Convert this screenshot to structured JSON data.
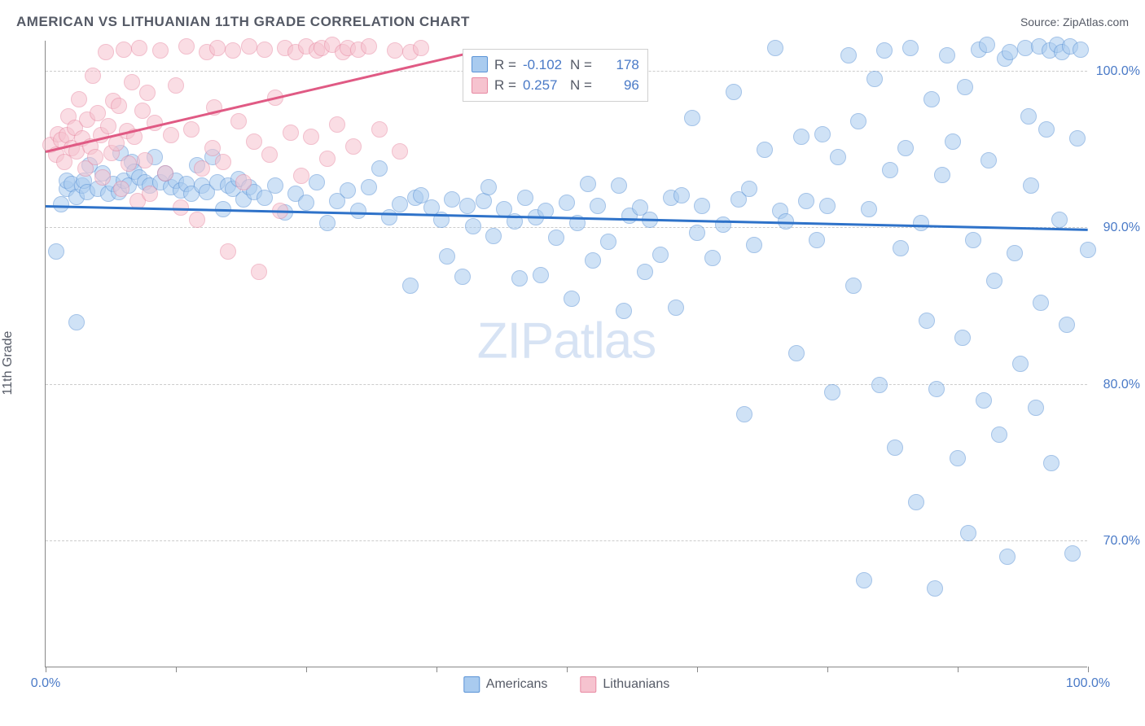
{
  "title": "AMERICAN VS LITHUANIAN 11TH GRADE CORRELATION CHART",
  "source_label": "Source: ZipAtlas.com",
  "ylabel": "11th Grade",
  "watermark_a": "ZIP",
  "watermark_b": "atlas",
  "chart": {
    "type": "scatter",
    "xlim": [
      0,
      100
    ],
    "ylim": [
      62,
      102
    ],
    "x_tick_positions": [
      0,
      12.5,
      25,
      37.5,
      50,
      62.5,
      75,
      87.5,
      100
    ],
    "x_tick_labels": {
      "0": "0.0%",
      "100": "100.0%"
    },
    "y_grid_positions": [
      70,
      80,
      90,
      100
    ],
    "y_tick_labels": [
      "70.0%",
      "80.0%",
      "90.0%",
      "100.0%"
    ],
    "grid_color": "#cccccc",
    "axis_color": "#888888",
    "background_color": "#ffffff",
    "marker_radius": 10,
    "marker_opacity": 0.55,
    "series": [
      {
        "name": "Americans",
        "fill": "#a9cbef",
        "stroke": "#5a93d6",
        "trend_color": "#2e72c9",
        "trend": {
          "x1": 0,
          "y1": 91.3,
          "x2": 100,
          "y2": 89.8
        },
        "R": "-0.102",
        "N": "178",
        "points": [
          [
            1,
            88.5
          ],
          [
            1.5,
            91.5
          ],
          [
            2,
            92.5
          ],
          [
            2,
            93
          ],
          [
            2.5,
            92.8
          ],
          [
            3,
            84
          ],
          [
            3,
            92
          ],
          [
            3.5,
            92.7
          ],
          [
            3.7,
            93
          ],
          [
            4,
            92.3
          ],
          [
            4.2,
            94
          ],
          [
            5,
            92.5
          ],
          [
            5.5,
            93.5
          ],
          [
            6,
            92.2
          ],
          [
            6.5,
            92.8
          ],
          [
            7,
            92.3
          ],
          [
            7.2,
            94.8
          ],
          [
            7.5,
            93
          ],
          [
            8,
            92.7
          ],
          [
            8.3,
            94.2
          ],
          [
            8.5,
            93.6
          ],
          [
            9,
            93.2
          ],
          [
            9.5,
            92.9
          ],
          [
            10,
            92.7
          ],
          [
            10.5,
            94.5
          ],
          [
            11,
            92.9
          ],
          [
            11.5,
            93.5
          ],
          [
            12,
            92.6
          ],
          [
            12.5,
            93
          ],
          [
            13,
            92.4
          ],
          [
            13.5,
            92.8
          ],
          [
            14,
            92.2
          ],
          [
            14.5,
            94
          ],
          [
            15,
            92.7
          ],
          [
            15.5,
            92.3
          ],
          [
            16,
            94.5
          ],
          [
            16.5,
            92.9
          ],
          [
            17,
            91.2
          ],
          [
            17.5,
            92.7
          ],
          [
            18,
            92.5
          ],
          [
            18.5,
            93.1
          ],
          [
            19,
            91.8
          ],
          [
            19.5,
            92.6
          ],
          [
            20,
            92.3
          ],
          [
            21,
            91.9
          ],
          [
            22,
            92.7
          ],
          [
            23,
            91
          ],
          [
            24,
            92.2
          ],
          [
            25,
            91.6
          ],
          [
            26,
            92.9
          ],
          [
            27,
            90.3
          ],
          [
            28,
            91.7
          ],
          [
            29,
            92.4
          ],
          [
            30,
            91.1
          ],
          [
            31,
            92.6
          ],
          [
            32,
            93.8
          ],
          [
            33,
            90.7
          ],
          [
            34,
            91.5
          ],
          [
            35,
            86.3
          ],
          [
            35.5,
            91.9
          ],
          [
            36,
            92.1
          ],
          [
            37,
            91.3
          ],
          [
            38,
            90.5
          ],
          [
            38.5,
            88.2
          ],
          [
            39,
            91.8
          ],
          [
            40,
            86.9
          ],
          [
            40.5,
            91.4
          ],
          [
            41,
            90.1
          ],
          [
            42,
            91.7
          ],
          [
            42.5,
            92.6
          ],
          [
            43,
            89.5
          ],
          [
            44,
            91.2
          ],
          [
            45,
            90.4
          ],
          [
            45.5,
            86.8
          ],
          [
            46,
            91.9
          ],
          [
            47,
            90.7
          ],
          [
            47.5,
            87
          ],
          [
            48,
            91.1
          ],
          [
            49,
            89.4
          ],
          [
            50,
            91.6
          ],
          [
            50.5,
            85.5
          ],
          [
            51,
            90.3
          ],
          [
            52,
            92.8
          ],
          [
            52.5,
            87.9
          ],
          [
            53,
            91.4
          ],
          [
            54,
            89.1
          ],
          [
            55,
            92.7
          ],
          [
            55.5,
            84.7
          ],
          [
            56,
            90.8
          ],
          [
            57,
            91.3
          ],
          [
            57.5,
            87.2
          ],
          [
            58,
            90.5
          ],
          [
            59,
            88.3
          ],
          [
            60,
            91.9
          ],
          [
            60.5,
            84.9
          ],
          [
            61,
            92.1
          ],
          [
            62,
            97
          ],
          [
            62.5,
            89.7
          ],
          [
            63,
            91.4
          ],
          [
            64,
            88.1
          ],
          [
            65,
            90.2
          ],
          [
            66,
            98.7
          ],
          [
            66.5,
            91.8
          ],
          [
            67,
            78.1
          ],
          [
            67.5,
            92.5
          ],
          [
            68,
            88.9
          ],
          [
            69,
            95
          ],
          [
            70,
            101.5
          ],
          [
            70.5,
            91.1
          ],
          [
            71,
            90.4
          ],
          [
            72,
            82
          ],
          [
            72.5,
            95.8
          ],
          [
            73,
            91.7
          ],
          [
            74,
            89.2
          ],
          [
            74.5,
            96
          ],
          [
            75,
            91.4
          ],
          [
            75.5,
            79.5
          ],
          [
            76,
            94.5
          ],
          [
            77,
            101
          ],
          [
            77.5,
            86.3
          ],
          [
            78,
            96.8
          ],
          [
            78.5,
            67.5
          ],
          [
            79,
            91.2
          ],
          [
            79.5,
            99.5
          ],
          [
            80,
            80
          ],
          [
            80.5,
            101.3
          ],
          [
            81,
            93.7
          ],
          [
            81.5,
            76
          ],
          [
            82,
            88.7
          ],
          [
            82.5,
            95.1
          ],
          [
            83,
            101.5
          ],
          [
            83.5,
            72.5
          ],
          [
            84,
            90.3
          ],
          [
            84.5,
            84.1
          ],
          [
            85,
            98.2
          ],
          [
            85.3,
            67
          ],
          [
            85.5,
            79.7
          ],
          [
            86,
            93.4
          ],
          [
            86.5,
            101
          ],
          [
            87,
            95.5
          ],
          [
            87.5,
            75.3
          ],
          [
            88,
            83
          ],
          [
            88.2,
            99
          ],
          [
            88.5,
            70.5
          ],
          [
            89,
            89.2
          ],
          [
            89.5,
            101.4
          ],
          [
            90,
            79
          ],
          [
            90.3,
            101.7
          ],
          [
            90.5,
            94.3
          ],
          [
            91,
            86.6
          ],
          [
            91.5,
            76.8
          ],
          [
            92,
            100.8
          ],
          [
            92.3,
            69
          ],
          [
            92.5,
            101.2
          ],
          [
            93,
            88.4
          ],
          [
            93.5,
            81.3
          ],
          [
            94,
            101.5
          ],
          [
            94.3,
            97.1
          ],
          [
            94.5,
            92.7
          ],
          [
            95,
            78.5
          ],
          [
            95.3,
            101.6
          ],
          [
            95.5,
            85.2
          ],
          [
            96,
            96.3
          ],
          [
            96.3,
            101.3
          ],
          [
            96.5,
            75
          ],
          [
            97,
            101.7
          ],
          [
            97.3,
            90.5
          ],
          [
            97.5,
            101.2
          ],
          [
            98,
            83.8
          ],
          [
            98.3,
            101.6
          ],
          [
            98.5,
            69.2
          ],
          [
            99,
            95.7
          ],
          [
            99.3,
            101.4
          ],
          [
            100,
            88.6
          ]
        ]
      },
      {
        "name": "Lithuanians",
        "fill": "#f6c3cf",
        "stroke": "#e88aa3",
        "trend_color": "#e05a84",
        "trend": {
          "x1": 0,
          "y1": 94.8,
          "x2": 40,
          "y2": 101
        },
        "R": "0.257",
        "N": "96",
        "points": [
          [
            0.5,
            95.3
          ],
          [
            1,
            94.7
          ],
          [
            1.2,
            96
          ],
          [
            1.5,
            95.6
          ],
          [
            1.8,
            94.2
          ],
          [
            2,
            95.9
          ],
          [
            2.2,
            97.1
          ],
          [
            2.5,
            95.1
          ],
          [
            2.8,
            96.4
          ],
          [
            3,
            94.9
          ],
          [
            3.2,
            98.2
          ],
          [
            3.5,
            95.7
          ],
          [
            3.8,
            93.8
          ],
          [
            4,
            96.9
          ],
          [
            4.3,
            95.2
          ],
          [
            4.5,
            99.7
          ],
          [
            4.8,
            94.5
          ],
          [
            5,
            97.3
          ],
          [
            5.3,
            95.9
          ],
          [
            5.5,
            93.2
          ],
          [
            5.8,
            101.2
          ],
          [
            6,
            96.5
          ],
          [
            6.3,
            94.8
          ],
          [
            6.5,
            98.1
          ],
          [
            6.8,
            95.4
          ],
          [
            7,
            97.8
          ],
          [
            7.3,
            92.5
          ],
          [
            7.5,
            101.4
          ],
          [
            7.8,
            96.2
          ],
          [
            8,
            94.1
          ],
          [
            8.3,
            99.3
          ],
          [
            8.5,
            95.8
          ],
          [
            8.8,
            91.7
          ],
          [
            9,
            101.5
          ],
          [
            9.3,
            97.5
          ],
          [
            9.5,
            94.3
          ],
          [
            9.8,
            98.6
          ],
          [
            10,
            92.2
          ],
          [
            10.5,
            96.7
          ],
          [
            11,
            101.3
          ],
          [
            11.5,
            93.5
          ],
          [
            12,
            95.9
          ],
          [
            12.5,
            99.1
          ],
          [
            13,
            91.3
          ],
          [
            13.5,
            101.6
          ],
          [
            14,
            96.3
          ],
          [
            14.5,
            90.5
          ],
          [
            15,
            93.8
          ],
          [
            15.5,
            101.2
          ],
          [
            16,
            95.1
          ],
          [
            16.2,
            97.7
          ],
          [
            16.5,
            101.5
          ],
          [
            17,
            94.2
          ],
          [
            17.5,
            88.5
          ],
          [
            18,
            101.3
          ],
          [
            18.5,
            96.8
          ],
          [
            19,
            92.9
          ],
          [
            19.5,
            101.6
          ],
          [
            20,
            95.5
          ],
          [
            20.5,
            87.2
          ],
          [
            21,
            101.4
          ],
          [
            21.5,
            94.7
          ],
          [
            22,
            98.3
          ],
          [
            22.5,
            91.1
          ],
          [
            23,
            101.5
          ],
          [
            23.5,
            96.1
          ],
          [
            24,
            101.2
          ],
          [
            24.5,
            93.3
          ],
          [
            25,
            101.6
          ],
          [
            25.5,
            95.8
          ],
          [
            26,
            101.3
          ],
          [
            26.5,
            101.5
          ],
          [
            27,
            94.4
          ],
          [
            27.5,
            101.7
          ],
          [
            28,
            96.6
          ],
          [
            28.5,
            101.2
          ],
          [
            29,
            101.5
          ],
          [
            29.5,
            95.2
          ],
          [
            30,
            101.4
          ],
          [
            31,
            101.6
          ],
          [
            32,
            96.3
          ],
          [
            33.5,
            101.3
          ],
          [
            34,
            94.9
          ],
          [
            35,
            101.2
          ],
          [
            36,
            101.5
          ]
        ]
      }
    ]
  },
  "stats_box": {
    "rows": [
      {
        "swatch_fill": "#a9cbef",
        "swatch_stroke": "#5a93d6",
        "R_label": "R =",
        "R_val": "-0.102",
        "N_label": "N =",
        "N_val": "178"
      },
      {
        "swatch_fill": "#f6c3cf",
        "swatch_stroke": "#e88aa3",
        "R_label": "R =",
        "R_val": "0.257",
        "N_label": "N =",
        "N_val": "96"
      }
    ]
  },
  "legend": {
    "items": [
      {
        "label": "Americans",
        "fill": "#a9cbef",
        "stroke": "#5a93d6"
      },
      {
        "label": "Lithuanians",
        "fill": "#f6c3cf",
        "stroke": "#e88aa3"
      }
    ]
  }
}
